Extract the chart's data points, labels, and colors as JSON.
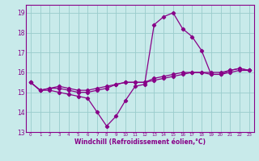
{
  "xlabel": "Windchill (Refroidissement éolien,°C)",
  "bg_color": "#c8eaea",
  "line_color": "#880088",
  "grid_color": "#99cccc",
  "spine_color": "#880088",
  "hours": [
    0,
    1,
    2,
    3,
    4,
    5,
    6,
    7,
    8,
    9,
    10,
    11,
    12,
    13,
    14,
    15,
    16,
    17,
    18,
    19,
    20,
    21,
    22,
    23
  ],
  "line1": [
    15.5,
    15.1,
    15.1,
    15.0,
    14.9,
    14.8,
    14.7,
    14.0,
    13.3,
    13.8,
    14.6,
    15.3,
    15.4,
    18.4,
    18.8,
    19.0,
    18.2,
    17.8,
    17.1,
    15.9,
    15.9,
    16.1,
    16.2,
    16.1
  ],
  "line2": [
    15.5,
    15.1,
    15.2,
    15.2,
    15.1,
    15.0,
    15.0,
    15.1,
    15.2,
    15.4,
    15.5,
    15.5,
    15.5,
    15.6,
    15.7,
    15.8,
    15.9,
    16.0,
    16.0,
    15.9,
    15.9,
    16.0,
    16.1,
    16.1
  ],
  "line3": [
    15.5,
    15.1,
    15.2,
    15.3,
    15.2,
    15.1,
    15.1,
    15.2,
    15.3,
    15.4,
    15.5,
    15.5,
    15.5,
    15.7,
    15.8,
    15.9,
    16.0,
    16.0,
    16.0,
    16.0,
    16.0,
    16.1,
    16.2,
    16.1
  ],
  "ylim": [
    13.0,
    19.4
  ],
  "xlim": [
    -0.5,
    23.5
  ],
  "yticks": [
    13,
    14,
    15,
    16,
    17,
    18,
    19
  ],
  "xticks": [
    0,
    1,
    2,
    3,
    4,
    5,
    6,
    7,
    8,
    9,
    10,
    11,
    12,
    13,
    14,
    15,
    16,
    17,
    18,
    19,
    20,
    21,
    22,
    23
  ],
  "tick_fontsize": 5,
  "xlabel_fontsize": 5.5,
  "marker_size": 2.2,
  "linewidth": 0.9
}
